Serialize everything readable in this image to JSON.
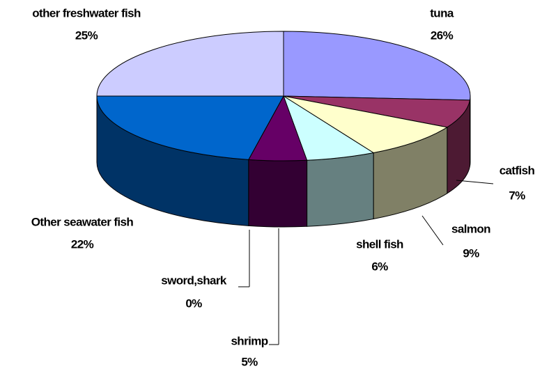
{
  "chart_data": {
    "type": "pie3d",
    "categories": [
      "tuna",
      "catfish",
      "salmon",
      "shell fish",
      "shrimp",
      "sword,shark",
      "Other seawater fish",
      "other freshwater fish"
    ],
    "values": [
      26,
      7,
      9,
      6,
      5,
      0,
      22,
      25
    ],
    "value_labels": [
      "26%",
      "7%",
      "9%",
      "6%",
      "5%",
      "0%",
      "22%",
      "25%"
    ],
    "colors": [
      "#9999ff",
      "#993366",
      "#ffffcc",
      "#ccffff",
      "#660066",
      "#ff8080",
      "#0066cc",
      "#ccccff"
    ]
  }
}
